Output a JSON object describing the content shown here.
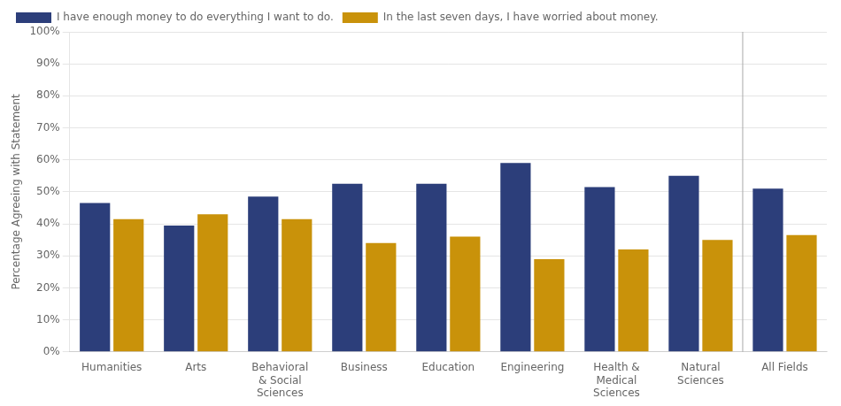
{
  "chart_data": {
    "type": "bar",
    "categories": [
      "Humanities",
      "Arts",
      "Behavioral\n& Social\nSciences",
      "Business",
      "Education",
      "Engineering",
      "Health &\nMedical\nSciences",
      "Natural\nSciences",
      "All Fields"
    ],
    "series": [
      {
        "name": "I have enough money to do everything I want to do.",
        "color": "#2C3E7A",
        "values": [
          46.5,
          39.5,
          48.5,
          52.5,
          52.5,
          59.0,
          51.5,
          55.0,
          51.0
        ]
      },
      {
        "name": "In the last seven days, I have worried about money.",
        "color": "#C9920A",
        "values": [
          41.5,
          43.0,
          41.5,
          34.0,
          36.0,
          29.0,
          32.0,
          35.0,
          36.5
        ]
      }
    ],
    "ylabel": "Percentage Agreeing with Statement",
    "ylim": [
      0,
      100
    ],
    "yticks": [
      {
        "value": 0,
        "label": "0%"
      },
      {
        "value": 10,
        "label": "10%"
      },
      {
        "value": 20,
        "label": "20%"
      },
      {
        "value": 30,
        "label": "30%"
      },
      {
        "value": 40,
        "label": "40%"
      },
      {
        "value": 50,
        "label": "50%"
      },
      {
        "value": 60,
        "label": "60%"
      },
      {
        "value": 70,
        "label": "70%"
      },
      {
        "value": 80,
        "label": "80%"
      },
      {
        "value": 90,
        "label": "90%"
      },
      {
        "value": 100,
        "label": "100%"
      }
    ],
    "grid": true,
    "legend": "top"
  }
}
